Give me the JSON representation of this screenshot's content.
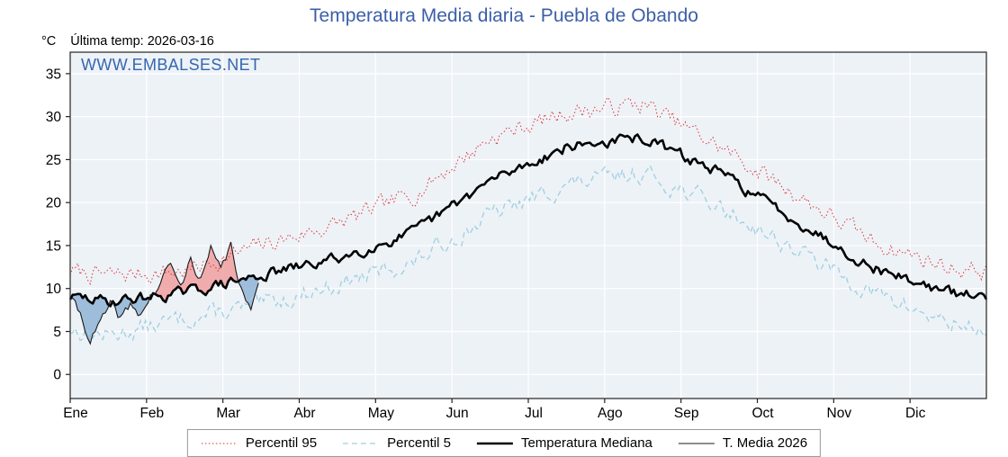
{
  "page": {
    "title": "Temperatura Media diaria - Puebla de Obando",
    "y_unit": "°C",
    "last_temp_label": "Última temp: 2026-03-16",
    "watermark": "WWW.EMBALSES.NET"
  },
  "chart_data": {
    "type": "line",
    "title": "Temperatura Media diaria - Puebla de Obando",
    "xlabel": "",
    "ylabel": "°C",
    "ylim": [
      -2.8,
      37.5
    ],
    "yticks": [
      0,
      5,
      10,
      15,
      20,
      25,
      30,
      35
    ],
    "x_months": [
      "Ene",
      "Feb",
      "Mar",
      "Abr",
      "May",
      "Jun",
      "Jul",
      "Ago",
      "Sep",
      "Oct",
      "Nov",
      "Dic"
    ],
    "grid": true,
    "background": "#edf2f7",
    "grid_color": "#ffffff",
    "legend_position": "bottom",
    "annotation": "Última temp: 2026-03-16",
    "watermark": "WWW.EMBALSES.NET",
    "series": [
      {
        "name": "Percentil 95",
        "style": "dotted",
        "color": "#dd3333",
        "width": 1,
        "noise": 0.9,
        "seed": 7,
        "monthly": [
          11.5,
          12,
          15,
          17.5,
          21,
          27.5,
          30.5,
          31.5,
          26.5,
          21,
          15.5,
          12.5
        ]
      },
      {
        "name": "Percentil 5",
        "style": "dashed",
        "color": "#9fcfe0",
        "width": 1.3,
        "noise": 0.9,
        "seed": 13,
        "monthly": [
          4.5,
          6.5,
          8,
          10.5,
          13,
          18.5,
          22,
          23.5,
          19.5,
          14.5,
          9.5,
          6
        ]
      },
      {
        "name": "Temperatura Mediana",
        "style": "solid",
        "color": "#000000",
        "width": 2.6,
        "noise": 0.55,
        "seed": 29,
        "monthly": [
          8.5,
          9.5,
          11.5,
          13.5,
          16.5,
          22.5,
          26.5,
          27.5,
          23.5,
          18,
          12.5,
          9.5
        ]
      },
      {
        "name": "T. Media 2026",
        "style": "solid",
        "color": "#1a1a1a",
        "width": 1.1,
        "noise": 0.5,
        "seed": 41,
        "days": [
          0,
          4,
          8,
          12,
          16,
          20,
          24,
          28,
          32,
          36,
          40,
          44,
          48,
          52,
          56,
          60,
          64,
          68,
          72,
          75
        ],
        "values": [
          9,
          7,
          4,
          6,
          8,
          6.5,
          8,
          7,
          9,
          10.5,
          13,
          10,
          13.5,
          11,
          14.5,
          12,
          15,
          10,
          7,
          11
        ],
        "fill_above_color": "#f0a0a0",
        "fill_below_color": "#8fb4d6"
      }
    ]
  }
}
